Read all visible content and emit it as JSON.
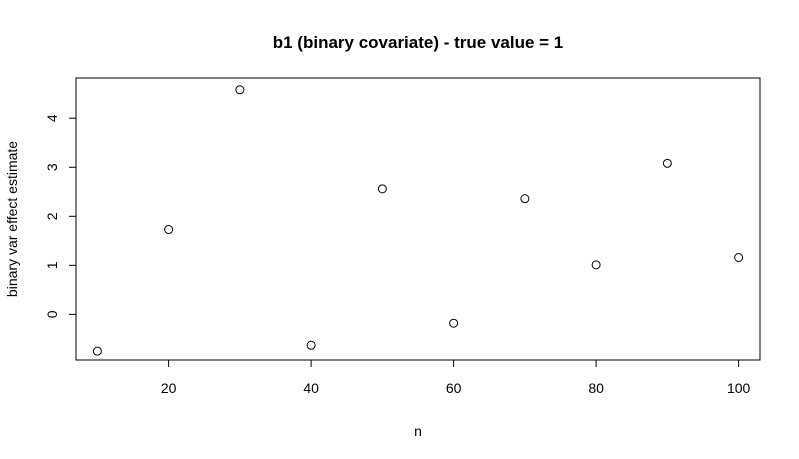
{
  "chart_data": {
    "type": "scatter",
    "title": "b1 (binary covariate) - true value = 1",
    "xlabel": "n",
    "ylabel": "binary var effect estimate",
    "xlim": [
      7,
      103
    ],
    "ylim": [
      -0.93,
      4.82
    ],
    "xticks": [
      20,
      40,
      60,
      80,
      100
    ],
    "xtick_labels": [
      "20",
      "40",
      "60",
      "80",
      "100"
    ],
    "yticks": [
      0,
      1,
      2,
      3,
      4
    ],
    "ytick_labels": [
      "0",
      "1",
      "2",
      "3",
      "4"
    ],
    "grid": false,
    "marker": "open-circle",
    "x": [
      10,
      20,
      30,
      40,
      50,
      60,
      70,
      80,
      90,
      100
    ],
    "y": [
      -0.75,
      1.73,
      4.58,
      -0.63,
      2.56,
      -0.18,
      2.36,
      1.01,
      3.08,
      1.16
    ]
  },
  "colors": {
    "background": "#ffffff",
    "foreground": "#000000"
  }
}
